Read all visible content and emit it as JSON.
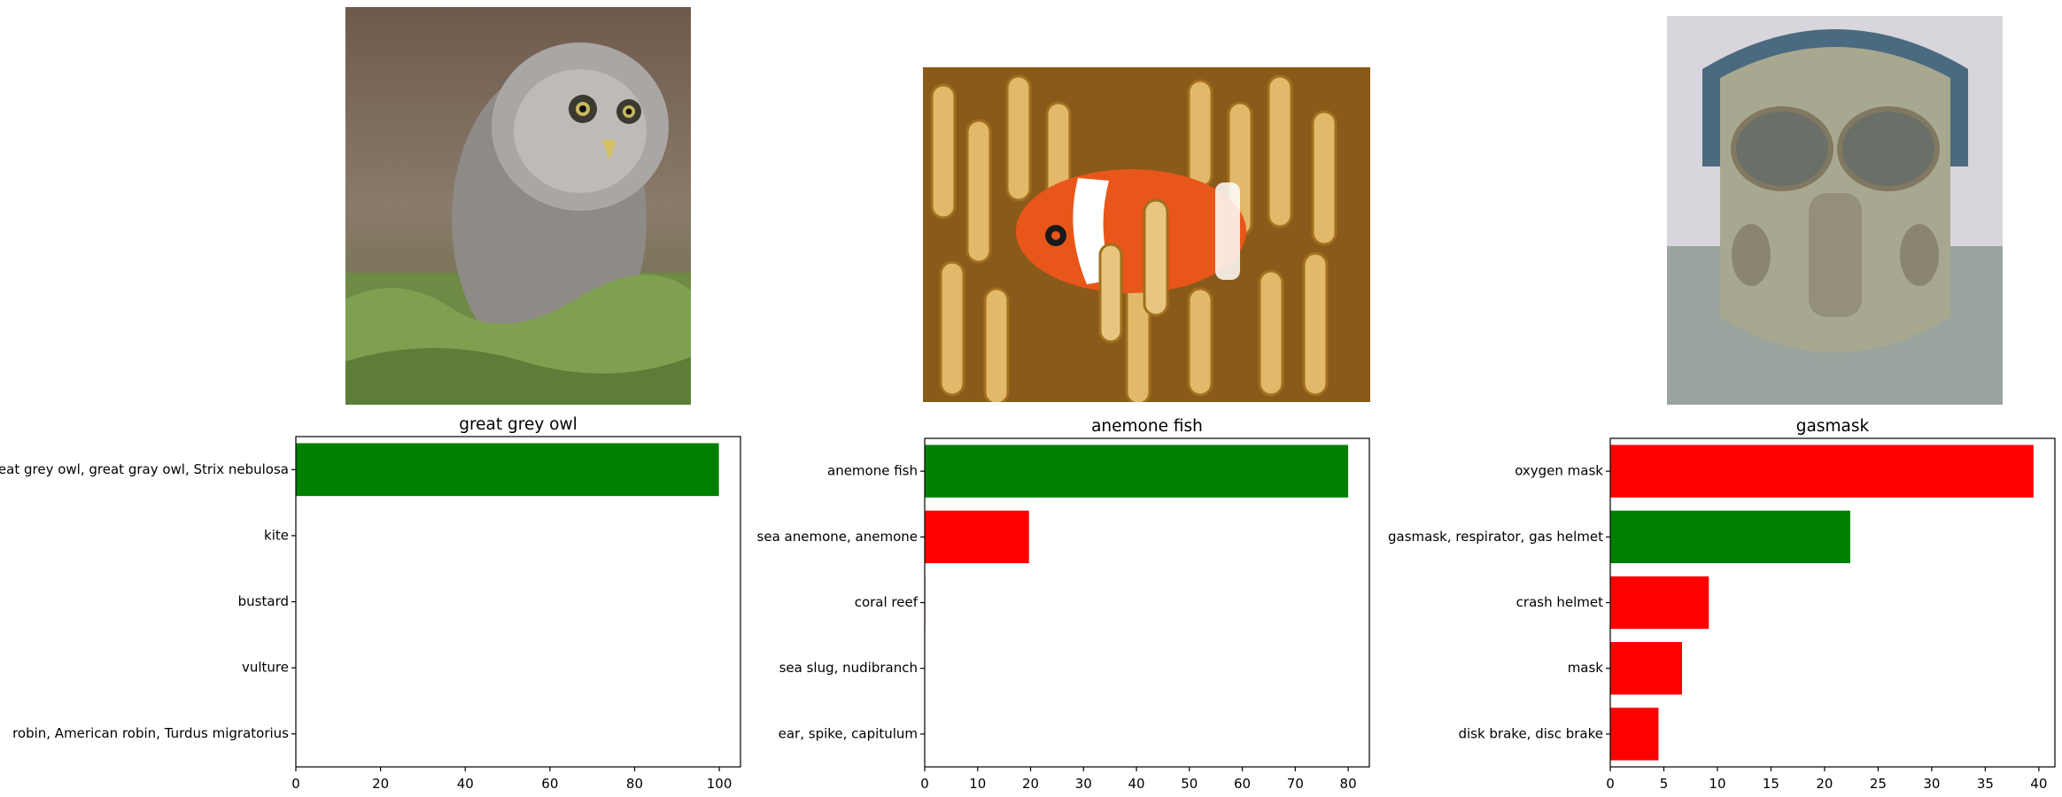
{
  "chart_data": [
    {
      "type": "bar",
      "orientation": "horizontal",
      "title": "great grey owl",
      "image_subject": "owl-photo",
      "categories": [
        "great grey owl, great gray owl, Strix nebulosa",
        "kite",
        "bustard",
        "vulture",
        "robin, American robin, Turdus migratorius"
      ],
      "values": [
        99.9,
        0.02,
        0.01,
        0.01,
        0.01
      ],
      "colors": [
        "#008000",
        "#ff0000",
        "#ff0000",
        "#ff0000",
        "#ff0000"
      ],
      "xlim": [
        0,
        105
      ],
      "xticks": [
        0,
        20,
        40,
        60,
        80,
        100
      ]
    },
    {
      "type": "bar",
      "orientation": "horizontal",
      "title": "anemone fish",
      "image_subject": "clownfish-photo",
      "categories": [
        "anemone fish",
        "sea anemone, anemone",
        "coral reef",
        "sea slug, nudibranch",
        "ear, spike, capitulum"
      ],
      "values": [
        80.0,
        19.7,
        0.1,
        0.05,
        0.02
      ],
      "colors": [
        "#008000",
        "#ff0000",
        "#ff0000",
        "#ff0000",
        "#ff0000"
      ],
      "xlim": [
        0,
        84
      ],
      "xticks": [
        0,
        10,
        20,
        30,
        40,
        50,
        60,
        70,
        80
      ]
    },
    {
      "type": "bar",
      "orientation": "horizontal",
      "title": "gasmask",
      "image_subject": "gasmask-photo",
      "categories": [
        "oxygen mask",
        "gasmask, respirator, gas helmet",
        "crash helmet",
        "mask",
        "disk brake, disc brake"
      ],
      "values": [
        39.5,
        22.4,
        9.2,
        6.7,
        4.5
      ],
      "colors": [
        "#ff0000",
        "#008000",
        "#ff0000",
        "#ff0000",
        "#ff0000"
      ],
      "xlim": [
        0,
        41.5
      ],
      "xticks": [
        0,
        5,
        10,
        15,
        20,
        25,
        30,
        35,
        40
      ]
    }
  ]
}
